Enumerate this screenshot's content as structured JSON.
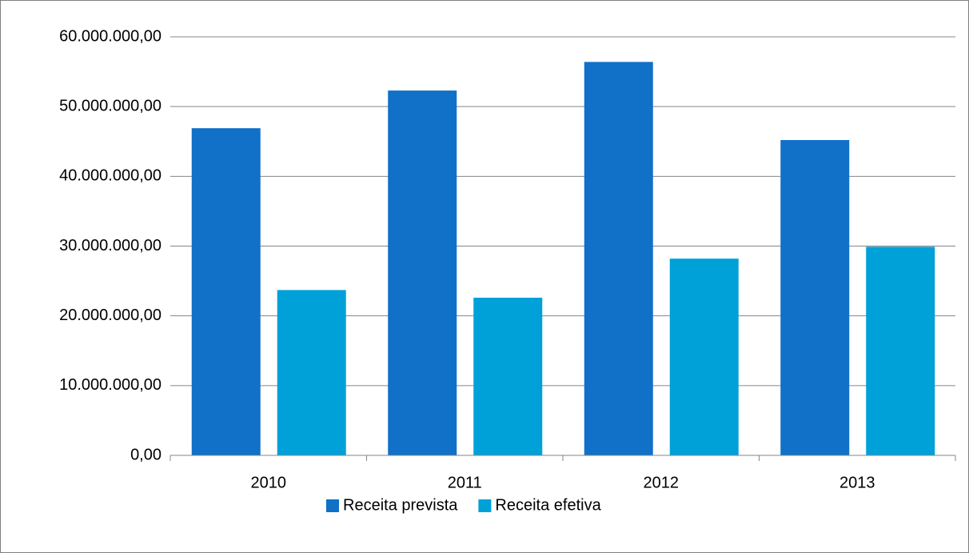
{
  "chart_data": {
    "type": "bar",
    "categories": [
      "2010",
      "2011",
      "2012",
      "2013"
    ],
    "series": [
      {
        "name": "Receita prevista",
        "color": "#1170c8",
        "values": [
          46900000,
          52300000,
          56400000,
          45200000
        ]
      },
      {
        "name": "Receita efetiva",
        "color": "#00a0d8",
        "values": [
          23700000,
          22600000,
          28200000,
          29900000
        ]
      }
    ],
    "ylim": [
      0,
      60000000
    ],
    "yticks": [
      {
        "value": 0,
        "label": "0,00"
      },
      {
        "value": 10000000,
        "label": "10.000.000,00"
      },
      {
        "value": 20000000,
        "label": "20.000.000,00"
      },
      {
        "value": 30000000,
        "label": "30.000.000,00"
      },
      {
        "value": 40000000,
        "label": "40.000.000,00"
      },
      {
        "value": 50000000,
        "label": "50.000.000,00"
      },
      {
        "value": 60000000,
        "label": "60.000.000,00"
      }
    ],
    "grid": true,
    "legend": "bottom"
  }
}
